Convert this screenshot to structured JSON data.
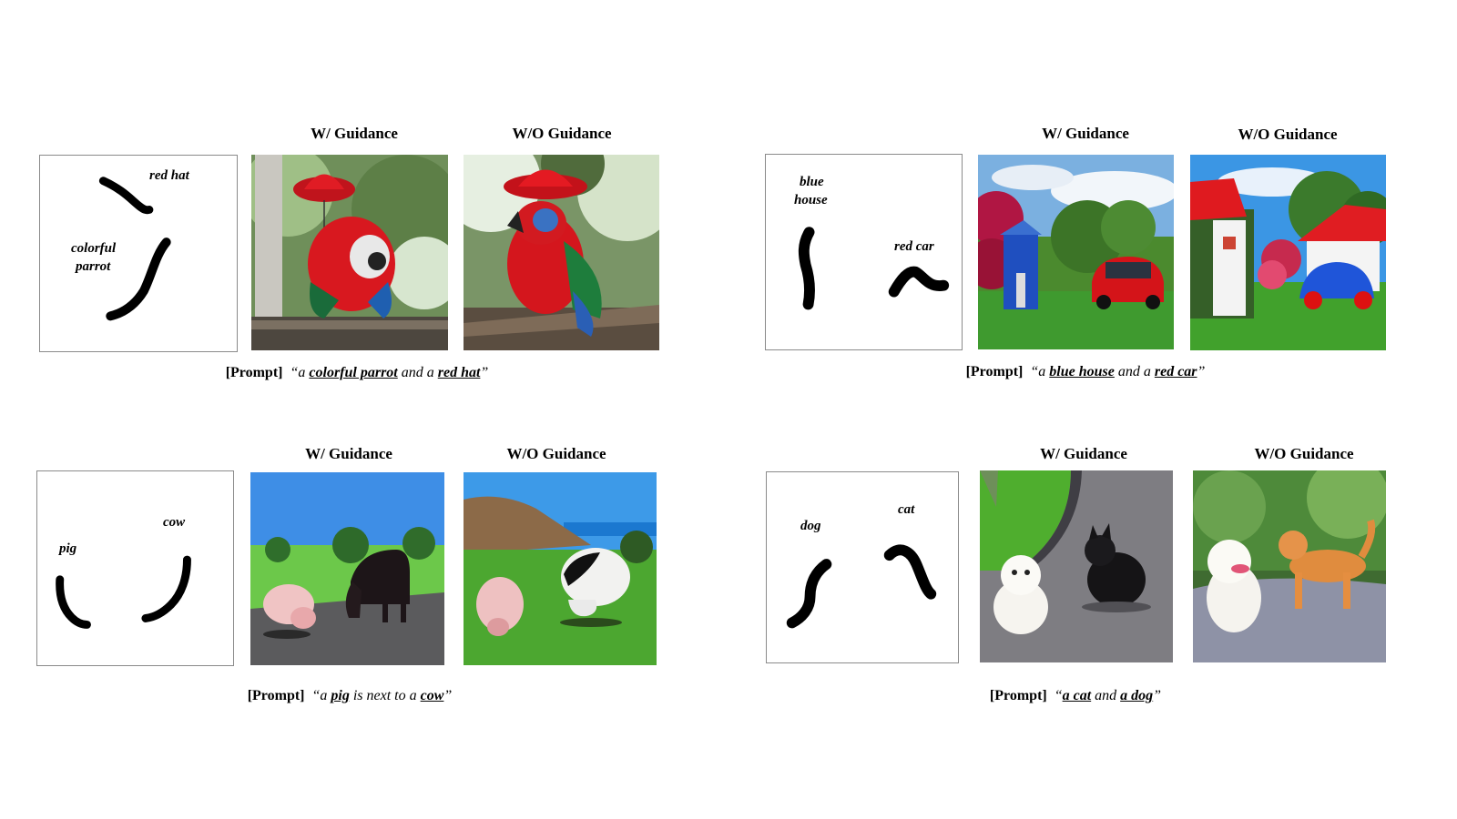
{
  "headers": {
    "with": "W/ Guidance",
    "without": "W/O Guidance"
  },
  "prompt_tag": "[Prompt]",
  "panels": [
    {
      "labels": [
        "red hat",
        "colorful",
        "parrot"
      ],
      "prompt": {
        "open": "“a ",
        "t1": "colorful parrot",
        "mid": " and a ",
        "t2": "red hat",
        "close": "”"
      }
    },
    {
      "labels": [
        "blue",
        "house",
        "red car"
      ],
      "prompt": {
        "open": "“a ",
        "t1": "blue house",
        "mid": " and a ",
        "t2": "red car",
        "close": "”"
      }
    },
    {
      "labels": [
        "cow",
        "pig"
      ],
      "prompt": {
        "open": "“a ",
        "t1": "pig",
        "mid": " is next to a ",
        "t2": "cow",
        "close": "”"
      }
    },
    {
      "labels": [
        "cat",
        "dog"
      ],
      "prompt": {
        "open": "“",
        "t1": "a cat",
        "mid": " and ",
        "t2": "a dog",
        "close": "”"
      }
    }
  ]
}
